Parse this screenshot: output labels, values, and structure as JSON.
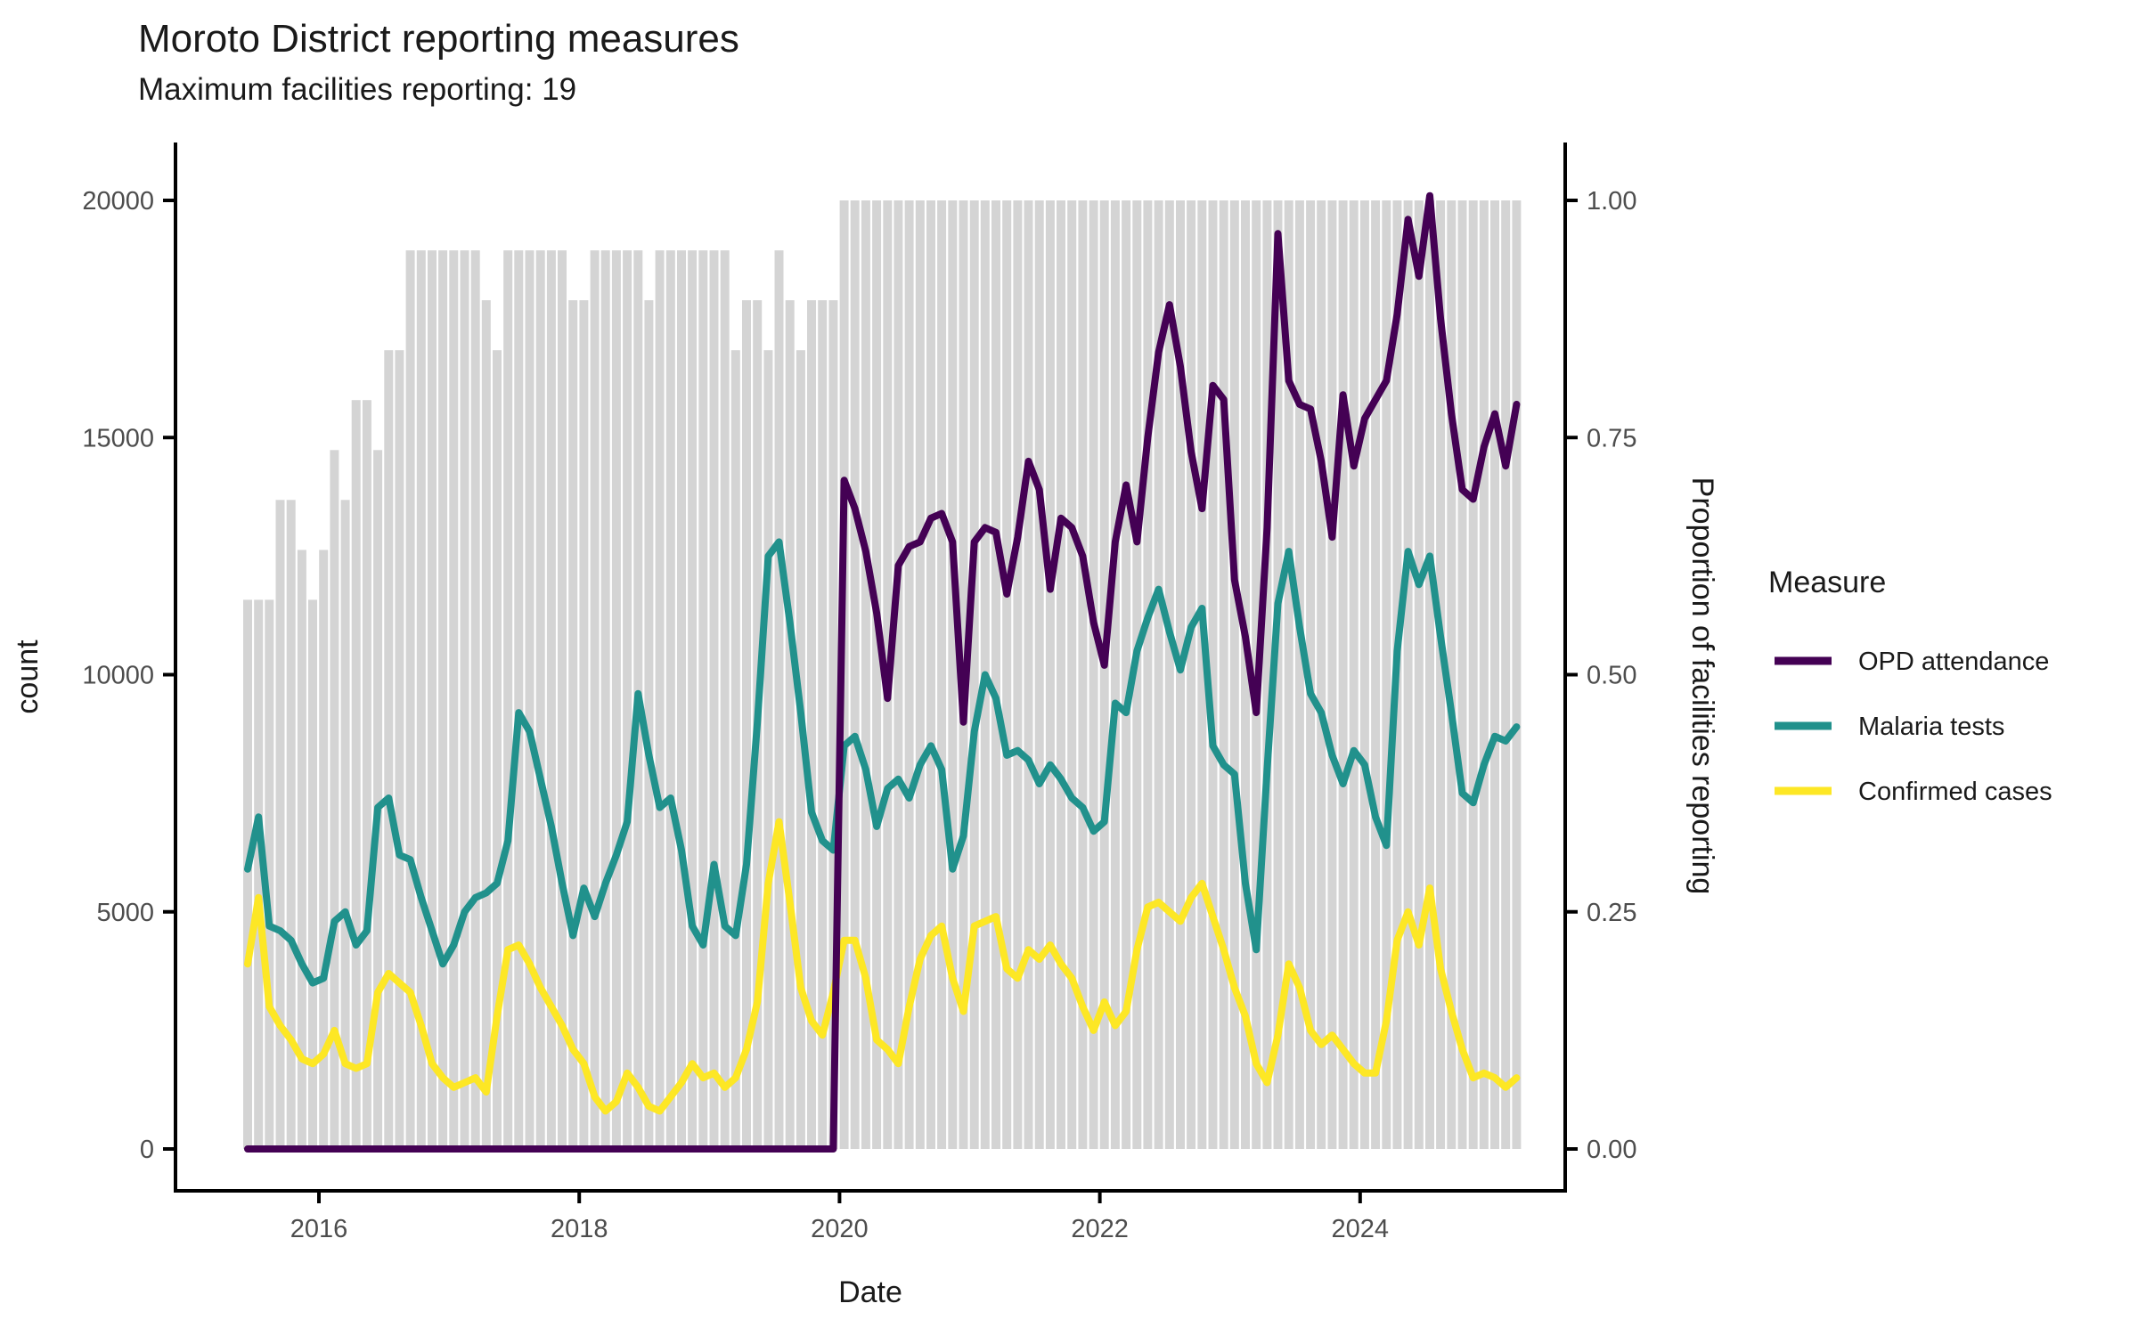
{
  "header": {
    "title": "Moroto District reporting measures",
    "subtitle": "Maximum facilities reporting: 19"
  },
  "axes": {
    "left_label": "count",
    "bottom_label": "Date",
    "right_label": "Proportion of facilities reporting",
    "left_ticks": [
      "0",
      "5000",
      "10000",
      "15000",
      "20000"
    ],
    "left_tick_values": [
      0,
      5000,
      10000,
      15000,
      20000
    ],
    "right_ticks": [
      "0.00",
      "0.25",
      "0.50",
      "0.75",
      "1.00"
    ],
    "right_tick_values": [
      0,
      0.25,
      0.5,
      0.75,
      1.0
    ],
    "x_ticks": [
      "2016",
      "2018",
      "2020",
      "2022",
      "2024"
    ],
    "x_tick_years": [
      2016,
      2018,
      2020,
      2022,
      2024
    ]
  },
  "legend": {
    "title": "Measure",
    "items": [
      {
        "label": "OPD attendance",
        "color": "#440154"
      },
      {
        "label": "Malaria tests",
        "color": "#21918c"
      },
      {
        "label": "Confirmed cases",
        "color": "#fde725"
      }
    ]
  },
  "colors": {
    "bar_fill": "#d4d4d4",
    "axis_line": "#000000",
    "opd": "#440154",
    "malaria": "#21918c",
    "confirmed": "#fde725"
  },
  "chart_data": {
    "type": "line",
    "title": "Moroto District reporting measures",
    "subtitle": "Maximum facilities reporting: 19",
    "xlabel": "Date",
    "ylabel_left": "count",
    "ylabel_right": "Proportion of facilities reporting",
    "ylim_left": [
      0,
      20000
    ],
    "ylim_right": [
      0,
      1
    ],
    "max_facilities": 19,
    "legend_position": "right",
    "grid": false,
    "months": [
      "2015-06",
      "2015-07",
      "2015-08",
      "2015-09",
      "2015-10",
      "2015-11",
      "2015-12",
      "2016-01",
      "2016-02",
      "2016-03",
      "2016-04",
      "2016-05",
      "2016-06",
      "2016-07",
      "2016-08",
      "2016-09",
      "2016-10",
      "2016-11",
      "2016-12",
      "2017-01",
      "2017-02",
      "2017-03",
      "2017-04",
      "2017-05",
      "2017-06",
      "2017-07",
      "2017-08",
      "2017-09",
      "2017-10",
      "2017-11",
      "2017-12",
      "2018-01",
      "2018-02",
      "2018-03",
      "2018-04",
      "2018-05",
      "2018-06",
      "2018-07",
      "2018-08",
      "2018-09",
      "2018-10",
      "2018-11",
      "2018-12",
      "2019-01",
      "2019-02",
      "2019-03",
      "2019-04",
      "2019-05",
      "2019-06",
      "2019-07",
      "2019-08",
      "2019-09",
      "2019-10",
      "2019-11",
      "2019-12",
      "2020-01",
      "2020-02",
      "2020-03",
      "2020-04",
      "2020-05",
      "2020-06",
      "2020-07",
      "2020-08",
      "2020-09",
      "2020-10",
      "2020-11",
      "2020-12",
      "2021-01",
      "2021-02",
      "2021-03",
      "2021-04",
      "2021-05",
      "2021-06",
      "2021-07",
      "2021-08",
      "2021-09",
      "2021-10",
      "2021-11",
      "2021-12",
      "2022-01",
      "2022-02",
      "2022-03",
      "2022-04",
      "2022-05",
      "2022-06",
      "2022-07",
      "2022-08",
      "2022-09",
      "2022-10",
      "2022-11",
      "2022-12",
      "2023-01",
      "2023-02",
      "2023-03",
      "2023-04",
      "2023-05",
      "2023-06",
      "2023-07",
      "2023-08",
      "2023-09",
      "2023-10",
      "2023-11",
      "2023-12",
      "2024-01",
      "2024-02",
      "2024-03",
      "2024-04",
      "2024-05",
      "2024-06",
      "2024-07",
      "2024-08",
      "2024-09",
      "2024-10",
      "2024-11",
      "2024-12",
      "2025-01",
      "2025-02",
      "2025-03"
    ],
    "facilities_reporting": [
      11,
      11,
      11,
      13,
      13,
      12,
      11,
      12,
      14,
      13,
      15,
      15,
      14,
      16,
      16,
      18,
      18,
      18,
      18,
      18,
      18,
      18,
      17,
      16,
      18,
      18,
      18,
      18,
      18,
      18,
      17,
      17,
      18,
      18,
      18,
      18,
      18,
      17,
      18,
      18,
      18,
      18,
      18,
      18,
      18,
      16,
      17,
      17,
      16,
      18,
      17,
      16,
      17,
      17,
      17,
      19,
      19,
      19,
      19,
      19,
      19,
      19,
      19,
      19,
      19,
      19,
      19,
      19,
      19,
      19,
      19,
      19,
      19,
      19,
      19,
      19,
      19,
      19,
      19,
      19,
      19,
      19,
      19,
      19,
      19,
      19,
      19,
      19,
      19,
      19,
      19,
      19,
      19,
      19,
      19,
      19,
      19,
      19,
      19,
      19,
      19,
      19,
      19,
      19,
      19,
      19,
      19,
      19,
      19,
      19,
      19,
      19,
      19,
      19,
      19,
      19,
      19,
      19
    ],
    "series": [
      {
        "name": "OPD attendance",
        "color": "#440154",
        "values": [
          0,
          0,
          0,
          0,
          0,
          0,
          0,
          0,
          0,
          0,
          0,
          0,
          0,
          0,
          0,
          0,
          0,
          0,
          0,
          0,
          0,
          0,
          0,
          0,
          0,
          0,
          0,
          0,
          0,
          0,
          0,
          0,
          0,
          0,
          0,
          0,
          0,
          0,
          0,
          0,
          0,
          0,
          0,
          0,
          0,
          0,
          0,
          0,
          0,
          0,
          0,
          0,
          0,
          0,
          0,
          14100,
          13500,
          12600,
          11300,
          9500,
          12300,
          12700,
          12800,
          13300,
          13400,
          12800,
          9000,
          12800,
          13100,
          13000,
          11700,
          12900,
          14500,
          13900,
          11800,
          13300,
          13100,
          12500,
          11100,
          10200,
          12800,
          14000,
          12800,
          15000,
          16800,
          17800,
          16500,
          14700,
          13500,
          16100,
          15800,
          12000,
          10800,
          9200,
          13100,
          19300,
          16200,
          15700,
          15600,
          14500,
          12900,
          15900,
          14400,
          15400,
          15800,
          16200,
          17600,
          19600,
          18400,
          20100,
          17500,
          15500,
          13900,
          13700,
          14800,
          15500,
          14400,
          15700
        ]
      },
      {
        "name": "Malaria tests",
        "color": "#21918c",
        "values": [
          5900,
          7000,
          4700,
          4600,
          4400,
          3900,
          3500,
          3600,
          4800,
          5000,
          4300,
          4600,
          7200,
          7400,
          6200,
          6100,
          5300,
          4600,
          3900,
          4300,
          5000,
          5300,
          5400,
          5600,
          6500,
          9200,
          8800,
          7800,
          6800,
          5600,
          4500,
          5500,
          4900,
          5600,
          6200,
          6900,
          9600,
          8300,
          7200,
          7400,
          6300,
          4700,
          4300,
          6000,
          4700,
          4500,
          6000,
          9000,
          12500,
          12800,
          11100,
          9200,
          7100,
          6500,
          6300,
          8500,
          8700,
          8000,
          6800,
          7600,
          7800,
          7400,
          8100,
          8500,
          8000,
          5900,
          6600,
          8800,
          10000,
          9500,
          8300,
          8400,
          8200,
          7700,
          8100,
          7800,
          7400,
          7200,
          6700,
          6900,
          9400,
          9200,
          10500,
          11200,
          11800,
          10900,
          10100,
          11000,
          11400,
          8500,
          8100,
          7900,
          5600,
          4200,
          8000,
          11500,
          12600,
          11000,
          9600,
          9200,
          8300,
          7700,
          8400,
          8100,
          7000,
          6400,
          10500,
          12600,
          11900,
          12500,
          10800,
          9200,
          7500,
          7300,
          8100,
          8700,
          8600,
          8900
        ]
      },
      {
        "name": "Confirmed cases",
        "color": "#fde725",
        "values": [
          3900,
          5300,
          3000,
          2600,
          2300,
          1900,
          1800,
          2000,
          2500,
          1800,
          1700,
          1800,
          3300,
          3700,
          3500,
          3300,
          2600,
          1800,
          1500,
          1300,
          1400,
          1500,
          1200,
          2800,
          4200,
          4300,
          3900,
          3400,
          3000,
          2600,
          2100,
          1800,
          1100,
          800,
          1000,
          1600,
          1300,
          900,
          800,
          1100,
          1400,
          1800,
          1500,
          1600,
          1300,
          1500,
          2100,
          3100,
          5600,
          6900,
          5200,
          3400,
          2700,
          2400,
          3300,
          4400,
          4400,
          3600,
          2300,
          2100,
          1800,
          3000,
          4000,
          4500,
          4700,
          3600,
          2900,
          4700,
          4800,
          4900,
          3800,
          3600,
          4200,
          4000,
          4300,
          3900,
          3600,
          3000,
          2500,
          3100,
          2600,
          2900,
          4200,
          5100,
          5200,
          5000,
          4800,
          5300,
          5600,
          4900,
          4200,
          3400,
          2800,
          1800,
          1400,
          2400,
          3900,
          3400,
          2500,
          2200,
          2400,
          2100,
          1800,
          1600,
          1600,
          2700,
          4400,
          5000,
          4300,
          5500,
          3800,
          2900,
          2100,
          1500,
          1600,
          1500,
          1300,
          1500
        ]
      }
    ]
  }
}
